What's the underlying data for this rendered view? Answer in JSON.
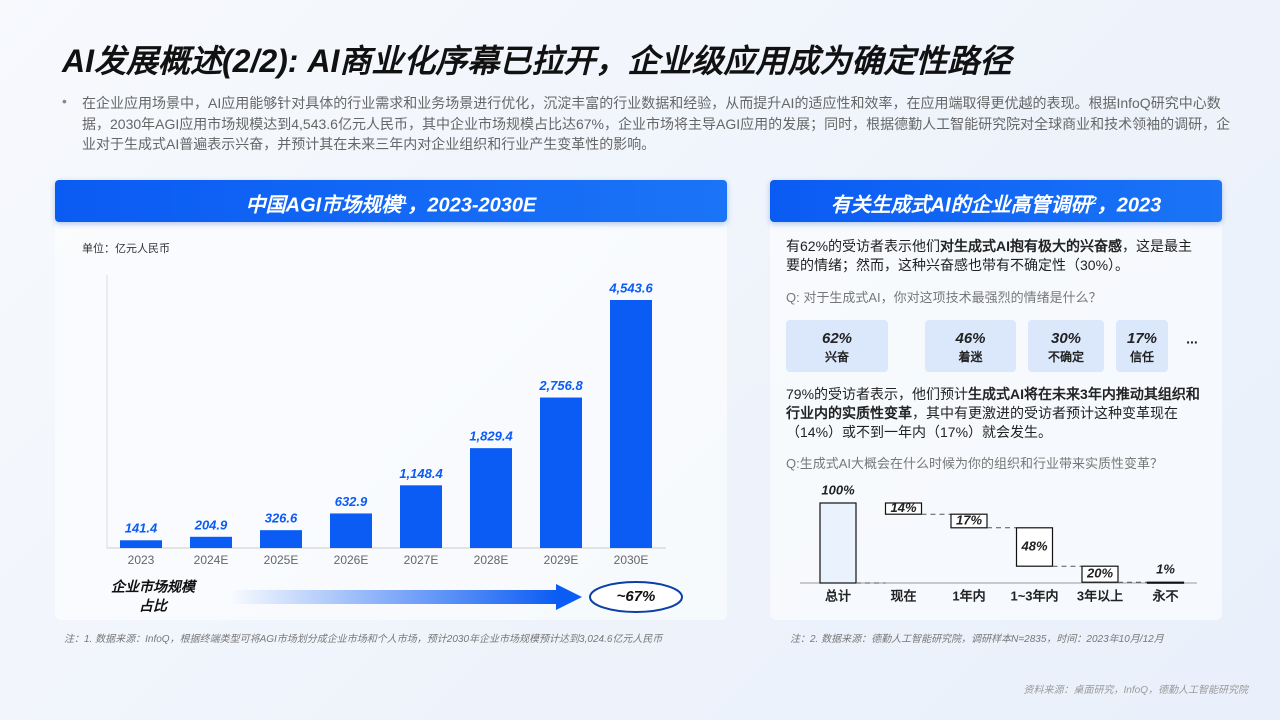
{
  "title": "AI发展概述(2/2): AI商业化序幕已拉开，企业级应用成为确定性路径",
  "summary": "在企业应用场景中，AI应用能够针对具体的行业需求和业务场景进行优化，沉淀丰富的行业数据和经验，从而提升AI的适应性和效率，在应用端取得更优越的表现。根据InfoQ研究中心数据，2030年AGI应用市场规模达到4,543.6亿元人民币，其中企业市场规模占比达67%，企业市场将主导AGI应用的发展；同时，根据德勤人工智能研究院对全球商业和技术领袖的调研，企业对于生成式AI普遍表示兴奋，并预计其在未来三年内对企业组织和行业产生变革性的影响。",
  "source": "资料来源：桌面研究，InfoQ，德勤人工智能研究院",
  "survey": {
    "title_parts": [
      "有关生成式AI的企业高管调研",
      "2",
      "，2023"
    ],
    "paragraph_1": [
      {
        "text": "有62%的受访者表示他们",
        "bold": false
      },
      {
        "text": "对生成式AI抱有极大的兴奋感",
        "bold": true
      },
      {
        "text": "，这是最主要的情绪；然而，这种兴奋感也带有不确定性（30%）。",
        "bold": false
      }
    ],
    "question_1": "Q: 对于生成式AI，你对这项技术最强烈的情绪是什么？",
    "paragraph_2": [
      {
        "text": "79%的受访者表示，他们预计",
        "bold": false
      },
      {
        "text": "生成式AI将在未来3年内推动其组织和行业内的实质性变革",
        "bold": true
      },
      {
        "text": "，其中有更激进的受访者预计这种变革现在（14%）或不到一年内（17%）就会发生。",
        "bold": false
      }
    ],
    "question_2": "Q:生成式AI大概会在什么时候为你的组织和行业带来实质性变革？",
    "note": "注：2. 数据来源：德勤人工智能研究院，调研样本N=2835，时间：2023年10月/12月"
  },
  "chart_data": [
    {
      "type": "bar",
      "title_parts": [
        "中国AGI市场规模",
        "1",
        "，2023-2030E"
      ],
      "unit_label": "单位：亿元人民币",
      "categories": [
        "2023",
        "2024E",
        "2025E",
        "2026E",
        "2027E",
        "2028E",
        "2029E",
        "2030E"
      ],
      "values": [
        141.4,
        204.9,
        326.6,
        632.9,
        1148.4,
        1829.4,
        2756.8,
        4543.6
      ],
      "value_labels": [
        "141.4",
        "204.9",
        "326.6",
        "632.9",
        "1,148.4",
        "1,829.4",
        "2,756.8",
        "4,543.6"
      ],
      "color": "#0b5cf4",
      "share_label": [
        "企业市场规模",
        "占比"
      ],
      "share_value_label": "~67%",
      "note": "注：1. 数据来源：InfoQ，根据终端类型可将AGI市场划分成企业市场和个人市场，预计2030年企业市场规模预计达到3,024.6亿元人民币"
    },
    {
      "type": "tiles",
      "categories": [
        "兴奋",
        "着迷",
        "不确定",
        "信任"
      ],
      "values": [
        62,
        46,
        30,
        17
      ],
      "value_labels": [
        "62%",
        "46%",
        "30%",
        "17%"
      ],
      "more": "...",
      "color": "#dbe8fb"
    },
    {
      "type": "waterfall",
      "categories": [
        "总计",
        "现在",
        "1年内",
        "1~3年内",
        "3年以上",
        "永不"
      ],
      "values": [
        100,
        14,
        17,
        48,
        20,
        1
      ],
      "value_labels": [
        "100%",
        "14%",
        "17%",
        "48%",
        "20%",
        "1%"
      ],
      "color": "#eaf2fe"
    }
  ]
}
